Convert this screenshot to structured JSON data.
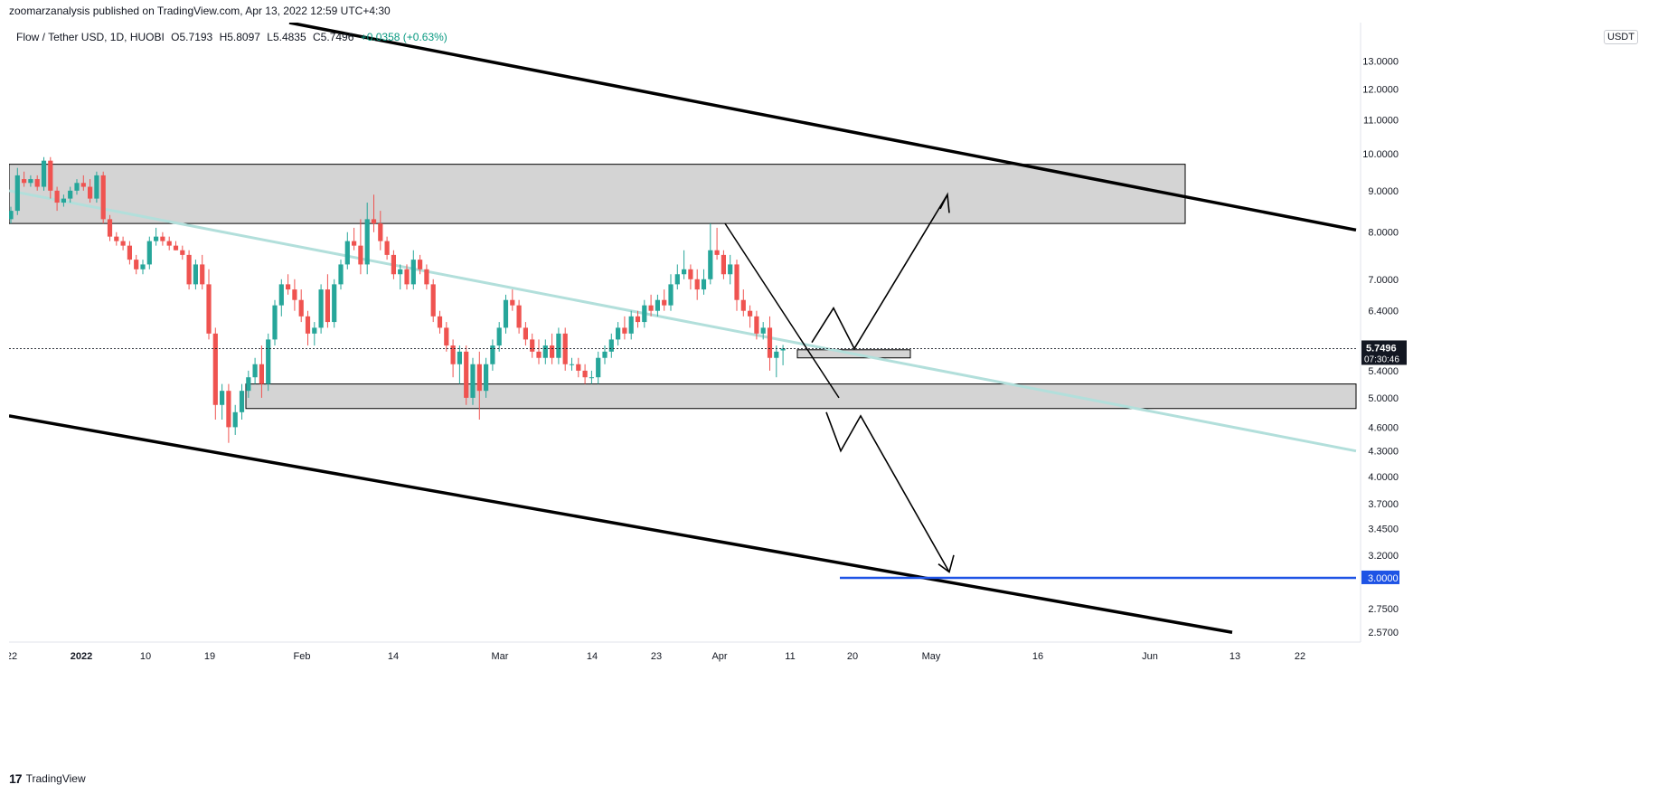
{
  "publisher_line": "zoomarzanalysis published on TradingView.com, Apr 13, 2022 12:59 UTC+4:30",
  "legend": {
    "symbol": "Flow / Tether USD, 1D, HUOBI",
    "open": "O5.7193",
    "high": "H5.8097",
    "low": "L5.4835",
    "close": "C5.7496",
    "change": "+0.0358 (+0.63%)"
  },
  "unit": "USDT",
  "footer": {
    "logo": "17",
    "brand": "TradingView"
  },
  "colors": {
    "up": "#26a69a",
    "down": "#ef5350",
    "trendline": "#b2dfdb",
    "zone_fill": "#cccccc",
    "target_line": "#1e53e5",
    "price_label_bg": "#131722",
    "target_label_bg": "#1e53e5"
  },
  "chart_data": {
    "type": "candlestick",
    "title": "Flow / Tether USD, 1D, HUOBI",
    "y_scale": "log",
    "ylim": [
      2.5,
      14.5
    ],
    "y_ticks": [
      "2.5700",
      "2.7500",
      "3.0000",
      "3.2000",
      "3.4500",
      "3.7000",
      "4.0000",
      "4.3000",
      "4.6000",
      "5.0000",
      "5.4000",
      "5.7496",
      "6.4000",
      "7.0000",
      "8.0000",
      "9.0000",
      "10.0000",
      "11.0000",
      "12.0000",
      "13.0000"
    ],
    "x_ticks": [
      "22",
      "2022",
      "10",
      "19",
      "Feb",
      "14",
      "Mar",
      "14",
      "23",
      "Apr",
      "11",
      "20",
      "May",
      "16",
      "Jun",
      "13",
      "22"
    ],
    "last_price": "5.7496",
    "countdown": "07:30:46",
    "target_price": "3.0000",
    "candles": [
      {
        "o": 8.3,
        "h": 8.6,
        "l": 8.2,
        "c": 8.5
      },
      {
        "o": 8.5,
        "h": 9.6,
        "l": 8.4,
        "c": 9.4
      },
      {
        "o": 9.3,
        "h": 9.5,
        "l": 9.1,
        "c": 9.2
      },
      {
        "o": 9.2,
        "h": 9.4,
        "l": 9.1,
        "c": 9.3
      },
      {
        "o": 9.3,
        "h": 9.4,
        "l": 9.0,
        "c": 9.1
      },
      {
        "o": 9.1,
        "h": 9.9,
        "l": 9.0,
        "c": 9.8
      },
      {
        "o": 9.8,
        "h": 9.9,
        "l": 8.8,
        "c": 9.0
      },
      {
        "o": 9.0,
        "h": 9.1,
        "l": 8.5,
        "c": 8.7
      },
      {
        "o": 8.7,
        "h": 8.9,
        "l": 8.6,
        "c": 8.8
      },
      {
        "o": 8.8,
        "h": 9.1,
        "l": 8.7,
        "c": 9.0
      },
      {
        "o": 9.0,
        "h": 9.3,
        "l": 8.9,
        "c": 9.2
      },
      {
        "o": 9.2,
        "h": 9.4,
        "l": 9.0,
        "c": 9.1
      },
      {
        "o": 9.1,
        "h": 9.3,
        "l": 8.7,
        "c": 8.8
      },
      {
        "o": 8.8,
        "h": 9.5,
        "l": 8.7,
        "c": 9.4
      },
      {
        "o": 9.4,
        "h": 9.5,
        "l": 8.2,
        "c": 8.3
      },
      {
        "o": 8.3,
        "h": 8.4,
        "l": 7.8,
        "c": 7.9
      },
      {
        "o": 7.9,
        "h": 8.0,
        "l": 7.7,
        "c": 7.8
      },
      {
        "o": 7.8,
        "h": 7.9,
        "l": 7.6,
        "c": 7.7
      },
      {
        "o": 7.7,
        "h": 7.8,
        "l": 7.3,
        "c": 7.4
      },
      {
        "o": 7.4,
        "h": 7.5,
        "l": 7.1,
        "c": 7.2
      },
      {
        "o": 7.2,
        "h": 7.4,
        "l": 7.1,
        "c": 7.3
      },
      {
        "o": 7.3,
        "h": 7.9,
        "l": 7.2,
        "c": 7.8
      },
      {
        "o": 7.8,
        "h": 8.1,
        "l": 7.7,
        "c": 7.9
      },
      {
        "o": 7.9,
        "h": 8.0,
        "l": 7.7,
        "c": 7.8
      },
      {
        "o": 7.8,
        "h": 7.9,
        "l": 7.6,
        "c": 7.7
      },
      {
        "o": 7.7,
        "h": 7.8,
        "l": 7.6,
        "c": 7.6
      },
      {
        "o": 7.6,
        "h": 7.7,
        "l": 7.4,
        "c": 7.5
      },
      {
        "o": 7.5,
        "h": 7.6,
        "l": 6.8,
        "c": 6.9
      },
      {
        "o": 6.9,
        "h": 7.4,
        "l": 6.8,
        "c": 7.3
      },
      {
        "o": 7.3,
        "h": 7.5,
        "l": 6.8,
        "c": 6.9
      },
      {
        "o": 6.9,
        "h": 7.2,
        "l": 5.9,
        "c": 6.0
      },
      {
        "o": 6.0,
        "h": 6.1,
        "l": 4.7,
        "c": 4.9
      },
      {
        "o": 4.9,
        "h": 5.2,
        "l": 4.7,
        "c": 5.1
      },
      {
        "o": 5.1,
        "h": 5.2,
        "l": 4.4,
        "c": 4.6
      },
      {
        "o": 4.6,
        "h": 4.9,
        "l": 4.5,
        "c": 4.8
      },
      {
        "o": 4.8,
        "h": 5.2,
        "l": 4.7,
        "c": 5.1
      },
      {
        "o": 5.1,
        "h": 5.4,
        "l": 5.0,
        "c": 5.3
      },
      {
        "o": 5.3,
        "h": 5.6,
        "l": 5.2,
        "c": 5.5
      },
      {
        "o": 5.5,
        "h": 5.8,
        "l": 5.0,
        "c": 5.2
      },
      {
        "o": 5.2,
        "h": 6.0,
        "l": 5.1,
        "c": 5.9
      },
      {
        "o": 5.9,
        "h": 6.6,
        "l": 5.8,
        "c": 6.5
      },
      {
        "o": 6.5,
        "h": 7.0,
        "l": 6.3,
        "c": 6.9
      },
      {
        "o": 6.9,
        "h": 7.1,
        "l": 6.7,
        "c": 6.8
      },
      {
        "o": 6.8,
        "h": 7.0,
        "l": 6.4,
        "c": 6.6
      },
      {
        "o": 6.6,
        "h": 6.8,
        "l": 6.2,
        "c": 6.3
      },
      {
        "o": 6.3,
        "h": 6.4,
        "l": 5.8,
        "c": 6.0
      },
      {
        "o": 6.0,
        "h": 6.2,
        "l": 5.8,
        "c": 6.1
      },
      {
        "o": 6.1,
        "h": 6.9,
        "l": 6.0,
        "c": 6.8
      },
      {
        "o": 6.8,
        "h": 7.1,
        "l": 6.1,
        "c": 6.2
      },
      {
        "o": 6.2,
        "h": 7.0,
        "l": 6.1,
        "c": 6.9
      },
      {
        "o": 6.9,
        "h": 7.4,
        "l": 6.8,
        "c": 7.3
      },
      {
        "o": 7.3,
        "h": 8.0,
        "l": 7.2,
        "c": 7.8
      },
      {
        "o": 7.8,
        "h": 8.1,
        "l": 7.6,
        "c": 7.7
      },
      {
        "o": 7.7,
        "h": 8.3,
        "l": 7.1,
        "c": 7.3
      },
      {
        "o": 7.3,
        "h": 8.7,
        "l": 7.1,
        "c": 8.3
      },
      {
        "o": 8.3,
        "h": 8.9,
        "l": 8.0,
        "c": 8.2
      },
      {
        "o": 8.2,
        "h": 8.5,
        "l": 7.6,
        "c": 7.8
      },
      {
        "o": 7.8,
        "h": 7.9,
        "l": 7.4,
        "c": 7.5
      },
      {
        "o": 7.5,
        "h": 7.6,
        "l": 7.0,
        "c": 7.1
      },
      {
        "o": 7.1,
        "h": 7.3,
        "l": 6.8,
        "c": 7.2
      },
      {
        "o": 7.2,
        "h": 7.3,
        "l": 6.8,
        "c": 6.9
      },
      {
        "o": 6.9,
        "h": 7.6,
        "l": 6.8,
        "c": 7.4
      },
      {
        "o": 7.4,
        "h": 7.5,
        "l": 7.1,
        "c": 7.2
      },
      {
        "o": 7.2,
        "h": 7.3,
        "l": 6.8,
        "c": 6.9
      },
      {
        "o": 6.9,
        "h": 7.0,
        "l": 6.2,
        "c": 6.3
      },
      {
        "o": 6.3,
        "h": 6.4,
        "l": 6.0,
        "c": 6.1
      },
      {
        "o": 6.1,
        "h": 6.2,
        "l": 5.7,
        "c": 5.8
      },
      {
        "o": 5.8,
        "h": 5.9,
        "l": 5.3,
        "c": 5.5
      },
      {
        "o": 5.5,
        "h": 5.8,
        "l": 5.2,
        "c": 5.7
      },
      {
        "o": 5.7,
        "h": 5.8,
        "l": 4.9,
        "c": 5.0
      },
      {
        "o": 5.0,
        "h": 5.6,
        "l": 4.9,
        "c": 5.5
      },
      {
        "o": 5.5,
        "h": 5.7,
        "l": 4.7,
        "c": 5.1
      },
      {
        "o": 5.1,
        "h": 5.6,
        "l": 5.0,
        "c": 5.5
      },
      {
        "o": 5.5,
        "h": 5.9,
        "l": 5.4,
        "c": 5.8
      },
      {
        "o": 5.8,
        "h": 6.2,
        "l": 5.7,
        "c": 6.1
      },
      {
        "o": 6.1,
        "h": 6.7,
        "l": 6.0,
        "c": 6.6
      },
      {
        "o": 6.6,
        "h": 6.8,
        "l": 6.4,
        "c": 6.5
      },
      {
        "o": 6.5,
        "h": 6.6,
        "l": 6.0,
        "c": 6.1
      },
      {
        "o": 6.1,
        "h": 6.2,
        "l": 5.8,
        "c": 5.9
      },
      {
        "o": 5.9,
        "h": 6.0,
        "l": 5.6,
        "c": 5.7
      },
      {
        "o": 5.7,
        "h": 5.9,
        "l": 5.5,
        "c": 5.6
      },
      {
        "o": 5.6,
        "h": 5.9,
        "l": 5.5,
        "c": 5.8
      },
      {
        "o": 5.8,
        "h": 6.0,
        "l": 5.5,
        "c": 5.6
      },
      {
        "o": 5.6,
        "h": 6.1,
        "l": 5.5,
        "c": 6.0
      },
      {
        "o": 6.0,
        "h": 6.1,
        "l": 5.4,
        "c": 5.5
      },
      {
        "o": 5.5,
        "h": 5.6,
        "l": 5.4,
        "c": 5.5
      },
      {
        "o": 5.5,
        "h": 5.6,
        "l": 5.3,
        "c": 5.4
      },
      {
        "o": 5.4,
        "h": 5.5,
        "l": 5.2,
        "c": 5.3
      },
      {
        "o": 5.3,
        "h": 5.4,
        "l": 5.2,
        "c": 5.3
      },
      {
        "o": 5.3,
        "h": 5.7,
        "l": 5.2,
        "c": 5.6
      },
      {
        "o": 5.6,
        "h": 5.8,
        "l": 5.5,
        "c": 5.7
      },
      {
        "o": 5.7,
        "h": 6.0,
        "l": 5.6,
        "c": 5.9
      },
      {
        "o": 5.9,
        "h": 6.2,
        "l": 5.8,
        "c": 6.1
      },
      {
        "o": 6.1,
        "h": 6.3,
        "l": 5.9,
        "c": 6.0
      },
      {
        "o": 6.0,
        "h": 6.4,
        "l": 5.9,
        "c": 6.3
      },
      {
        "o": 6.3,
        "h": 6.4,
        "l": 6.1,
        "c": 6.2
      },
      {
        "o": 6.2,
        "h": 6.6,
        "l": 6.1,
        "c": 6.5
      },
      {
        "o": 6.5,
        "h": 6.7,
        "l": 6.3,
        "c": 6.4
      },
      {
        "o": 6.4,
        "h": 6.7,
        "l": 6.3,
        "c": 6.6
      },
      {
        "o": 6.6,
        "h": 6.8,
        "l": 6.4,
        "c": 6.5
      },
      {
        "o": 6.5,
        "h": 7.1,
        "l": 6.4,
        "c": 6.9
      },
      {
        "o": 6.9,
        "h": 7.3,
        "l": 6.8,
        "c": 7.1
      },
      {
        "o": 7.1,
        "h": 7.6,
        "l": 7.0,
        "c": 7.2
      },
      {
        "o": 7.2,
        "h": 7.3,
        "l": 6.8,
        "c": 7.0
      },
      {
        "o": 7.0,
        "h": 7.2,
        "l": 6.6,
        "c": 6.8
      },
      {
        "o": 6.8,
        "h": 7.2,
        "l": 6.7,
        "c": 7.0
      },
      {
        "o": 7.0,
        "h": 8.2,
        "l": 6.9,
        "c": 7.6
      },
      {
        "o": 7.6,
        "h": 8.1,
        "l": 7.4,
        "c": 7.5
      },
      {
        "o": 7.5,
        "h": 7.6,
        "l": 7.0,
        "c": 7.1
      },
      {
        "o": 7.1,
        "h": 7.5,
        "l": 6.9,
        "c": 7.3
      },
      {
        "o": 7.3,
        "h": 7.4,
        "l": 6.4,
        "c": 6.6
      },
      {
        "o": 6.6,
        "h": 6.8,
        "l": 6.3,
        "c": 6.4
      },
      {
        "o": 6.4,
        "h": 6.5,
        "l": 6.1,
        "c": 6.3
      },
      {
        "o": 6.3,
        "h": 6.4,
        "l": 5.9,
        "c": 6.0
      },
      {
        "o": 6.0,
        "h": 6.2,
        "l": 5.9,
        "c": 6.1
      },
      {
        "o": 6.1,
        "h": 6.3,
        "l": 5.4,
        "c": 5.6
      },
      {
        "o": 5.6,
        "h": 5.8,
        "l": 5.3,
        "c": 5.7
      },
      {
        "o": 5.7193,
        "h": 5.8097,
        "l": 5.4835,
        "c": 5.7496
      }
    ],
    "annotations": {
      "resistance_zone": {
        "top": 9.7,
        "bottom": 8.2
      },
      "support_zone": {
        "top": 5.2,
        "bottom": 4.85
      },
      "small_zone": {
        "top": 5.73,
        "bottom": 5.6
      }
    }
  }
}
